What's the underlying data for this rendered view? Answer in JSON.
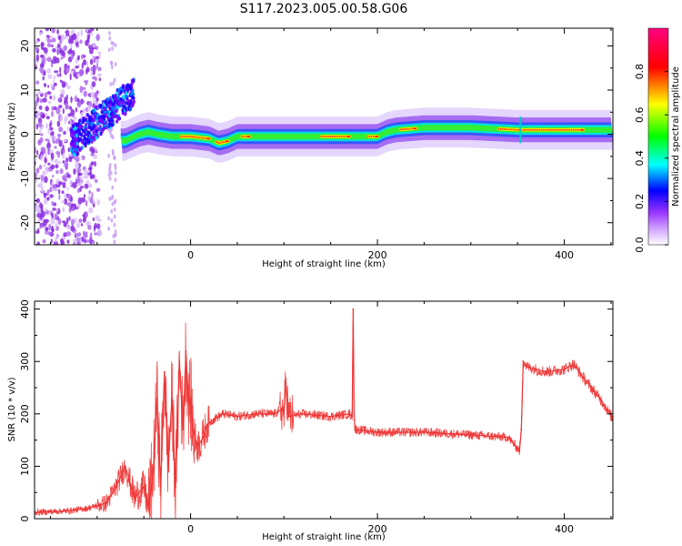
{
  "chart_data": [
    {
      "type": "heatmap",
      "title": "S117.2023.005.00.58.G06",
      "xlabel": "Height of straight line (km)",
      "ylabel": "Frequency (Hz)",
      "xlim": [
        -167,
        452
      ],
      "ylim": [
        -25,
        24
      ],
      "xticks": [
        0,
        200,
        400
      ],
      "yticks": [
        -20,
        -10,
        0,
        10,
        20
      ],
      "colorbar": {
        "label": "Normalized spectral amplitude",
        "range": [
          0,
          1
        ],
        "ticks": [
          "0.0",
          "0.2",
          "0.4",
          "0.6",
          "0.8"
        ],
        "colormap": [
          "#ffffff",
          "#9933ff",
          "#0000ff",
          "#00ffff",
          "#00ff00",
          "#ffff00",
          "#ff0000",
          "#ff0080"
        ]
      },
      "ridge_frequency": {
        "x": [
          -70,
          -55,
          -45,
          -35,
          -20,
          0,
          20,
          30,
          40,
          50,
          60,
          100,
          150,
          170,
          180,
          190,
          200,
          210,
          220,
          250,
          300,
          350,
          400,
          452
        ],
        "y": [
          -1.5,
          0,
          0.5,
          0,
          -0.5,
          -0.5,
          -1,
          -2,
          -1.5,
          -0.5,
          -0.5,
          -0.5,
          -0.5,
          -0.5,
          -0.5,
          -0.5,
          -0.5,
          0.5,
          1,
          1.5,
          1.5,
          1,
          1,
          1
        ]
      }
    },
    {
      "type": "line",
      "xlabel": "Height of straight line (km)",
      "ylabel": "SNR (10 * v/v)",
      "xlim": [
        -167,
        452
      ],
      "ylim": [
        0,
        415
      ],
      "xticks": [
        0,
        200,
        400
      ],
      "yticks": [
        0,
        100,
        200,
        300,
        400
      ],
      "series": [
        {
          "name": "SNR",
          "color": "#ee3333",
          "x": [
            -167,
            -130,
            -110,
            -90,
            -80,
            -70,
            -60,
            -50,
            -45,
            -40,
            -36,
            -32,
            -28,
            -24,
            -20,
            -16,
            -12,
            -8,
            -5,
            -2,
            0,
            2,
            5,
            8,
            12,
            18,
            25,
            35,
            50,
            70,
            90,
            98,
            100,
            102,
            105,
            120,
            150,
            170,
            173,
            174,
            175,
            176,
            178,
            200,
            250,
            300,
            340,
            352,
            354,
            356,
            360,
            380,
            400,
            410,
            420,
            440,
            452
          ],
          "y": [
            12,
            15,
            20,
            30,
            60,
            100,
            40,
            60,
            20,
            90,
            230,
            60,
            280,
            100,
            230,
            60,
            300,
            170,
            320,
            220,
            230,
            180,
            150,
            140,
            150,
            180,
            190,
            200,
            195,
            200,
            200,
            210,
            200,
            260,
            195,
            200,
            195,
            200,
            195,
            400,
            200,
            170,
            170,
            165,
            165,
            160,
            155,
            130,
            170,
            300,
            290,
            280,
            285,
            295,
            270,
            225,
            190
          ]
        }
      ]
    }
  ]
}
